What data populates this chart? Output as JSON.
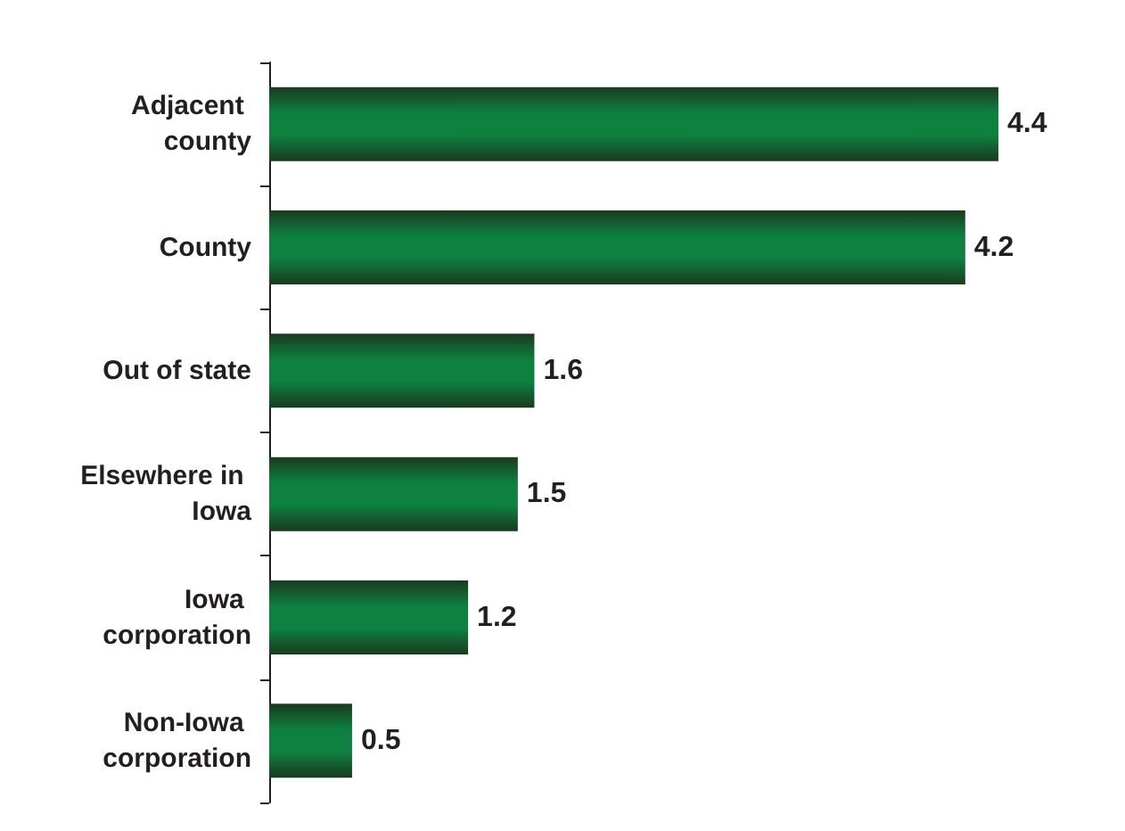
{
  "chart_data": {
    "type": "bar",
    "orientation": "horizontal",
    "categories": [
      "Adjacent county",
      "County",
      "Out of state",
      "Elsewhere in Iowa",
      "Iowa corporation",
      "Non-Iowa corporation"
    ],
    "values": [
      4.4,
      4.2,
      1.6,
      1.5,
      1.2,
      0.5
    ],
    "color": "#0e8040",
    "data_labels": true,
    "grid": false
  }
}
